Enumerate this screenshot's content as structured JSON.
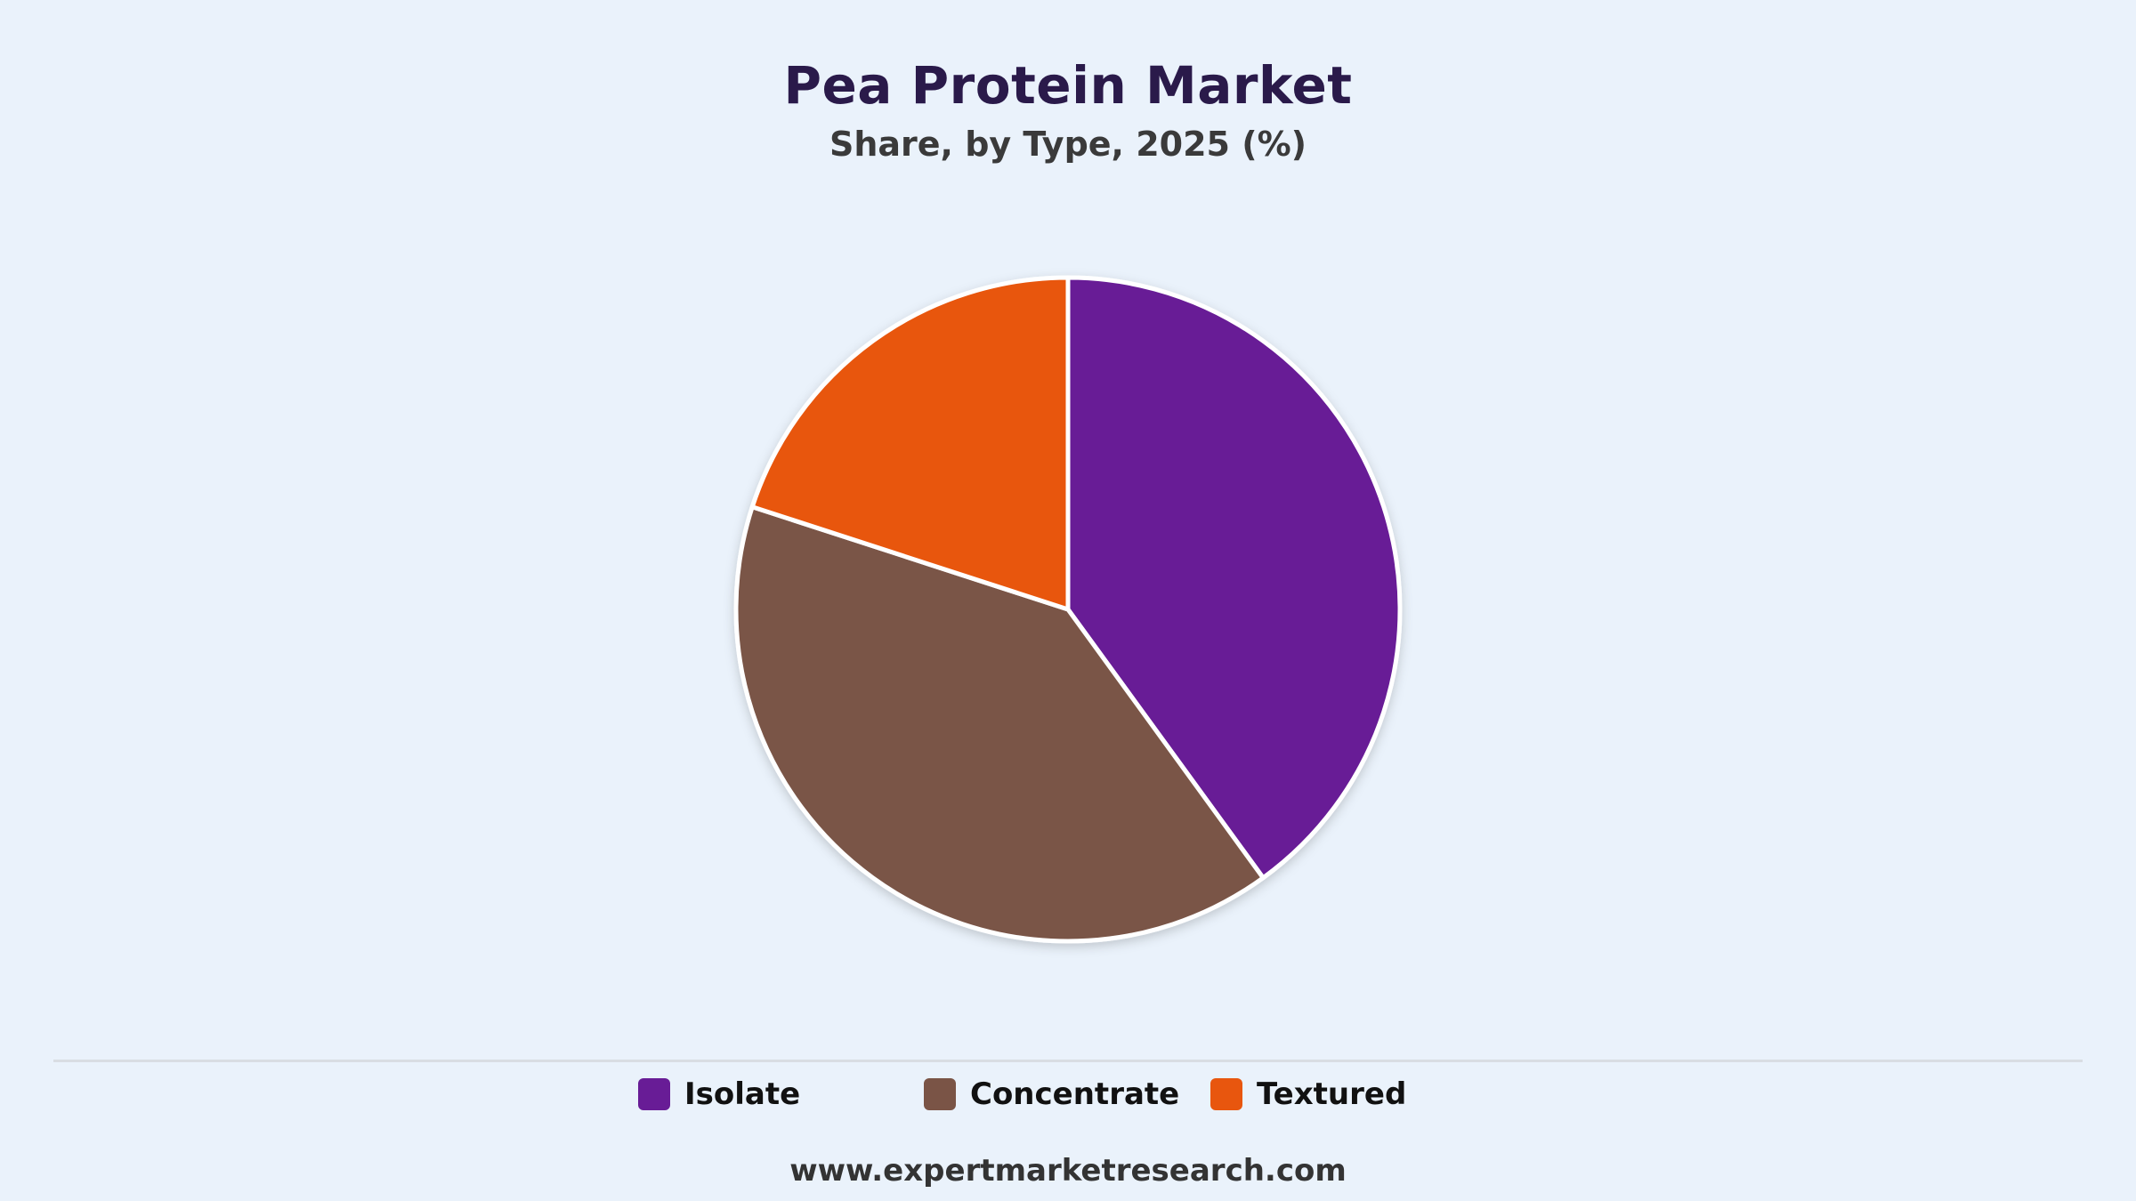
{
  "header": {
    "title": "Pea Protein Market",
    "subtitle": "Share, by Type, 2025 (%)"
  },
  "chart_data": {
    "type": "pie",
    "title": "Pea Protein Market",
    "subtitle": "Share, by Type, 2025 (%)",
    "categories": [
      "Isolate",
      "Concentrate",
      "Textured"
    ],
    "values": [
      40,
      40,
      20
    ],
    "colors": [
      "#681c96",
      "#7a5446",
      "#e8560e"
    ],
    "start_angle": "top (12 o'clock), clockwise",
    "legend": "bottom-center"
  },
  "legend": {
    "items": [
      {
        "label": "Isolate",
        "color": "#681c96"
      },
      {
        "label": "Concentrate",
        "color": "#7a5446"
      },
      {
        "label": "Textured",
        "color": "#e8560e"
      }
    ]
  },
  "footer": {
    "source": "www.expertmarketresearch.com"
  }
}
